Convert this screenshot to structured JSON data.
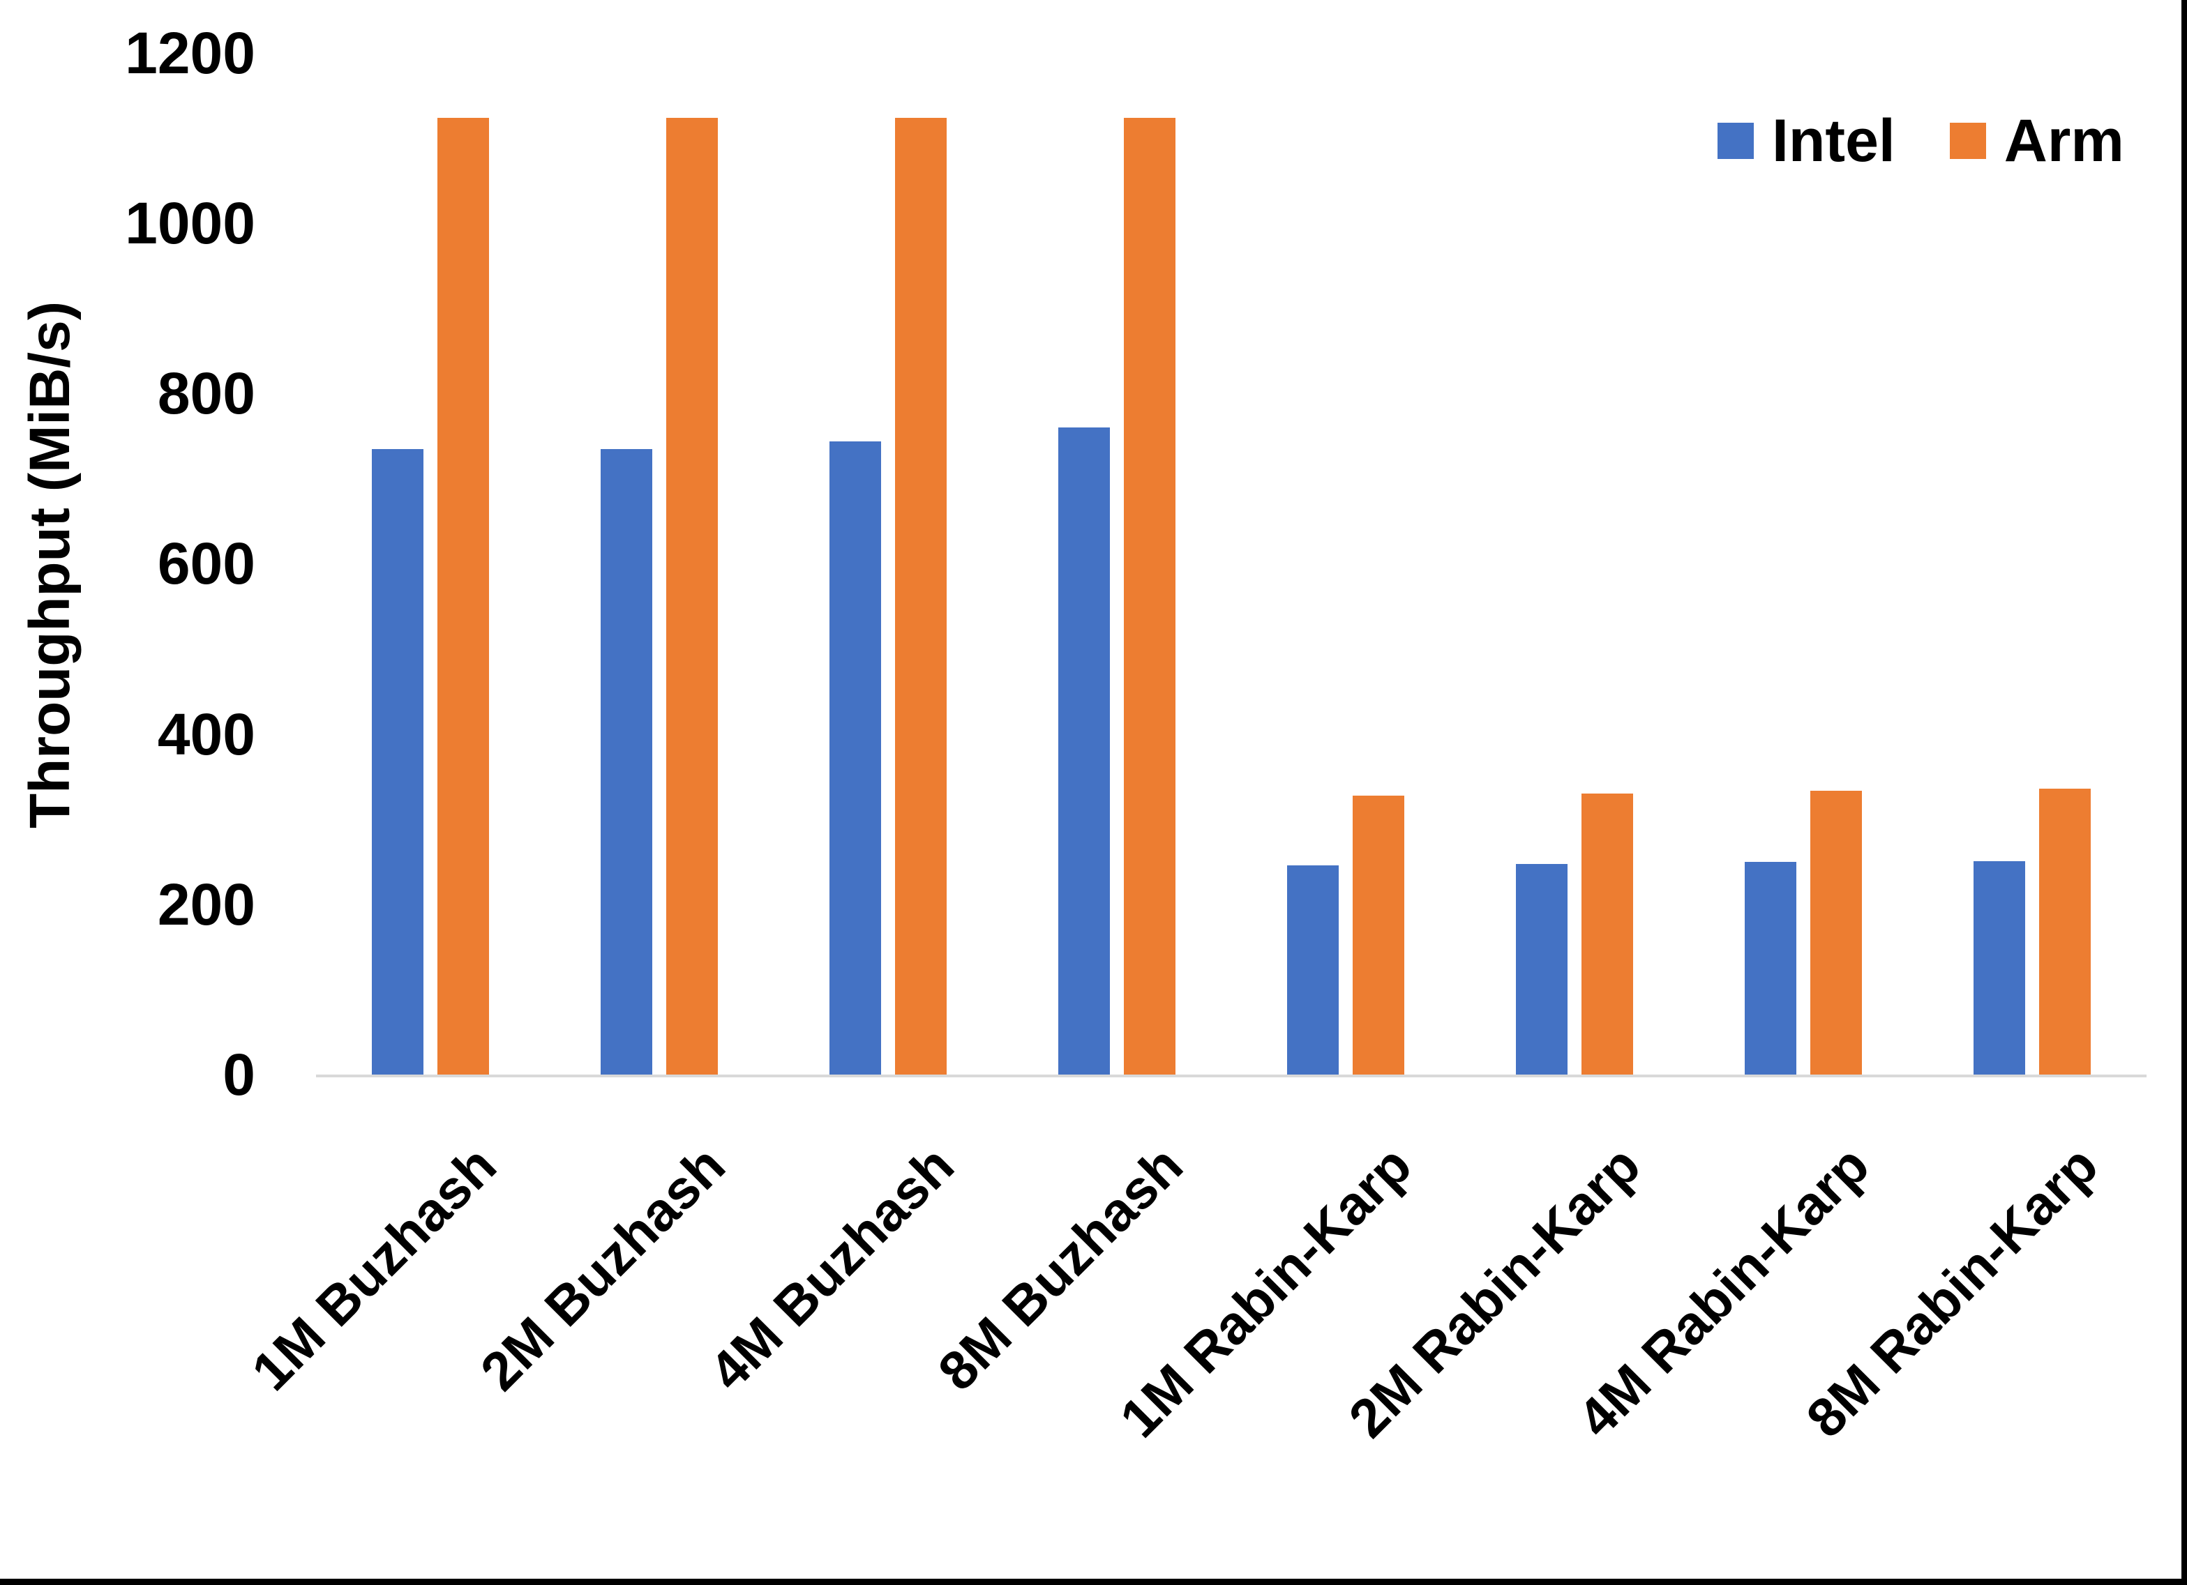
{
  "chart_data": {
    "type": "bar",
    "title": "",
    "categories": [
      "1M Buzhash",
      "2M Buzhash",
      "4M Buzhash",
      "8M Buzhash",
      "1M Rabin-Karp",
      "2M Rabin-Karp",
      "4M Rabin-Karp",
      "8M Rabin-Karp"
    ],
    "series": [
      {
        "name": "Intel",
        "color": "#4472C4",
        "values": [
          735,
          735,
          744,
          760,
          246,
          247,
          250,
          251
        ]
      },
      {
        "name": "Arm",
        "color": "#ED7D31",
        "values": [
          1124,
          1124,
          1124,
          1124,
          328,
          330,
          333,
          336
        ]
      }
    ],
    "xlabel": "",
    "ylabel": "Throughput (MiB/s)",
    "ylim": [
      0,
      1200
    ],
    "yticks": [
      0,
      200,
      400,
      600,
      800,
      1000,
      1200
    ],
    "grid": false,
    "legend_position": "top-right",
    "axis_line_color": "#D9D9D9",
    "text_color": "#000000",
    "background_color": "#FFFFFF",
    "border_color": "#000000"
  }
}
